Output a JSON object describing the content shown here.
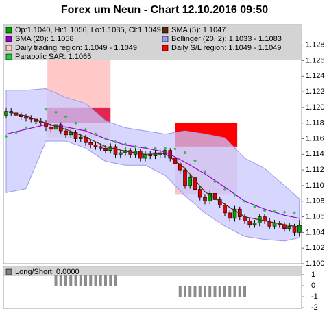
{
  "chart_data": {
    "type": "candlestick",
    "title": "Forex um Neun - Chart 12.10.2016 09:50",
    "open": [
      1.119,
      1.1195,
      1.1193,
      1.119,
      1.1188,
      1.1186,
      1.1185,
      1.1182,
      1.118,
      1.1175,
      1.1172,
      1.1178,
      1.117,
      1.1165,
      1.1168,
      1.116,
      1.1162,
      1.1155,
      1.1152,
      1.115,
      1.1148,
      1.1145,
      1.115,
      1.114,
      1.1142,
      1.1145,
      1.114,
      1.1144,
      1.1135,
      1.114,
      1.1138,
      1.1142,
      1.114,
      1.1145,
      1.1135,
      1.1128,
      1.112,
      1.11,
      1.111,
      1.1095,
      1.1085,
      1.108,
      1.109,
      1.1082,
      1.1075,
      1.1065,
      1.1058,
      1.107,
      1.106,
      1.1055,
      1.105,
      1.1052,
      1.106,
      1.1055,
      1.1048,
      1.1052,
      1.105,
      1.1045,
      1.1048,
      1.104
    ],
    "high": [
      1.12,
      1.1199,
      1.1197,
      1.1194,
      1.1192,
      1.119,
      1.1189,
      1.1186,
      1.1184,
      1.1179,
      1.1182,
      1.1181,
      1.1174,
      1.1172,
      1.1171,
      1.1166,
      1.1165,
      1.1159,
      1.1156,
      1.1154,
      1.1152,
      1.1154,
      1.1153,
      1.1146,
      1.1149,
      1.1148,
      1.1148,
      1.1147,
      1.1144,
      1.1144,
      1.1146,
      1.1146,
      1.1149,
      1.1148,
      1.1138,
      1.1131,
      1.1123,
      1.1114,
      1.1113,
      1.1099,
      1.1089,
      1.1094,
      1.1093,
      1.1086,
      1.1078,
      1.1068,
      1.1074,
      1.1073,
      1.1064,
      1.1059,
      1.1056,
      1.1064,
      1.1063,
      1.1058,
      1.1056,
      1.1055,
      1.1053,
      1.1052,
      1.1051,
      1.1056
    ],
    "low": [
      1.1186,
      1.1189,
      1.1186,
      1.1184,
      1.1182,
      1.1181,
      1.1178,
      1.1176,
      1.117,
      1.1168,
      1.1168,
      1.1166,
      1.1161,
      1.1161,
      1.1156,
      1.1156,
      1.1151,
      1.1148,
      1.1146,
      1.1144,
      1.1141,
      1.1141,
      1.1136,
      1.1136,
      1.1138,
      1.1136,
      1.1136,
      1.1131,
      1.1131,
      1.1134,
      1.1134,
      1.1136,
      1.1136,
      1.1131,
      1.1124,
      1.1115,
      1.1096,
      1.1096,
      1.109,
      1.1081,
      1.1076,
      1.1076,
      1.1078,
      1.1071,
      1.1061,
      1.1054,
      1.1054,
      1.1056,
      1.1051,
      1.1046,
      1.1046,
      1.1048,
      1.1051,
      1.1044,
      1.1044,
      1.1046,
      1.1041,
      1.1041,
      1.1036,
      1.1035
    ],
    "close": [
      1.1195,
      1.1193,
      1.119,
      1.1188,
      1.1186,
      1.1185,
      1.1182,
      1.118,
      1.1175,
      1.1172,
      1.1178,
      1.117,
      1.1165,
      1.1168,
      1.116,
      1.1162,
      1.1155,
      1.1152,
      1.115,
      1.1148,
      1.1145,
      1.115,
      1.114,
      1.1142,
      1.1145,
      1.114,
      1.1144,
      1.1135,
      1.114,
      1.1138,
      1.1142,
      1.114,
      1.1145,
      1.1135,
      1.1128,
      1.112,
      1.11,
      1.111,
      1.1095,
      1.1085,
      1.108,
      1.109,
      1.1082,
      1.1075,
      1.1065,
      1.1058,
      1.107,
      1.106,
      1.1055,
      1.105,
      1.1052,
      1.106,
      1.1055,
      1.1048,
      1.1052,
      1.105,
      1.1045,
      1.1048,
      1.104,
      1.1049
    ],
    "up_color": "#00a000",
    "down_color": "#e00000",
    "ylim": [
      1.1,
      1.1306
    ],
    "yticks": [
      {
        "value": 1.1,
        "label": "1.100"
      },
      {
        "value": 1.102,
        "label": "1.102"
      },
      {
        "value": 1.104,
        "label": "1.104"
      },
      {
        "value": 1.106,
        "label": "1.106"
      },
      {
        "value": 1.108,
        "label": "1.108"
      },
      {
        "value": 1.11,
        "label": "1.110"
      },
      {
        "value": 1.112,
        "label": "1.112"
      },
      {
        "value": 1.114,
        "label": "1.114"
      },
      {
        "value": 1.116,
        "label": "1.116"
      },
      {
        "value": 1.118,
        "label": "1.118"
      },
      {
        "value": 1.12,
        "label": "1.120"
      },
      {
        "value": 1.122,
        "label": "1.122"
      },
      {
        "value": 1.124,
        "label": "1.124"
      },
      {
        "value": 1.126,
        "label": "1.126"
      },
      {
        "value": 1.128,
        "label": "1.128"
      }
    ],
    "legend": [
      {
        "label": "Op:1.1040, Hi:1.1056, Lo:1.1035, Cl:1.1049",
        "color": "#00a000"
      },
      {
        "label": "SMA (5): 1.1047",
        "color": "#5a2a10"
      },
      {
        "label": "SMA (20): 1.1058",
        "color": "#9900cc"
      },
      {
        "label": "Bollinger (20, 2): 1.1033 - 1.1083",
        "color": "#9a9af0"
      },
      {
        "label": "Daily trading region: 1.1049 - 1.1049",
        "color": "#ffc8c8"
      },
      {
        "label": "Daily S/L region: 1.1049 - 1.1049",
        "color": "#ff0000"
      },
      {
        "label": "Parabolic SAR: 1.1065",
        "color": "#22cc44"
      }
    ],
    "regions": [
      {
        "color": "#ffc0c0",
        "opacity": 0.85,
        "x": [
          8.3,
          21
        ],
        "y": [
          1.1161,
          1.1306
        ]
      },
      {
        "color": "#dc0a3c",
        "opacity": 0.85,
        "x": [
          8.3,
          21
        ],
        "y": [
          1.118,
          1.12
        ]
      },
      {
        "color": "#ff0000",
        "opacity": 1,
        "x": [
          34,
          46.5
        ],
        "y": [
          1.115,
          1.118
        ]
      },
      {
        "color": "#f0a0b0",
        "opacity": 0.6,
        "x": [
          34,
          46.5
        ],
        "y": [
          1.1089,
          1.115
        ]
      }
    ],
    "overlays": {
      "x": [
        0,
        4,
        8,
        12,
        16,
        20,
        24,
        28,
        32,
        36,
        40,
        44,
        48,
        52,
        56,
        59
      ],
      "bollinger": {
        "color": "#c8c8ff",
        "stroke": "#9a9af0",
        "upper": [
          1.1222,
          1.1222,
          1.1224,
          1.1213,
          1.1205,
          1.1183,
          1.1174,
          1.117,
          1.1166,
          1.117,
          1.1166,
          1.1161,
          1.1135,
          1.1122,
          1.11,
          1.1083
        ],
        "lower": [
          1.1091,
          1.1096,
          1.1157,
          1.1157,
          1.1148,
          1.1131,
          1.1126,
          1.1126,
          1.1113,
          1.1087,
          1.1065,
          1.1048,
          1.1035,
          1.1031,
          1.1029,
          1.1033
        ]
      },
      "sma20": {
        "color": "#9900cc",
        "values": [
          1.1166,
          1.1172,
          1.1178,
          1.1175,
          1.117,
          1.116,
          1.1152,
          1.1148,
          1.1143,
          1.113,
          1.1115,
          1.1098,
          1.108,
          1.107,
          1.1062,
          1.1058
        ]
      },
      "sma5": {
        "color": "#5a2a10",
        "values": [
          1.1195,
          1.1189,
          1.118,
          1.1172,
          1.1162,
          1.115,
          1.1144,
          1.114,
          1.1141,
          1.1122,
          1.1092,
          1.1076,
          1.106,
          1.1055,
          1.105,
          1.1047
        ]
      }
    },
    "sar": {
      "color": "#22cc44",
      "x": [
        0,
        2,
        4,
        6,
        8,
        10,
        12,
        14,
        16,
        18,
        20,
        22,
        24,
        26,
        28,
        30,
        32,
        34,
        36,
        38,
        40,
        42,
        44,
        46,
        48,
        50,
        52,
        54,
        56,
        58
      ],
      "values": [
        1.1163,
        1.1168,
        1.1174,
        1.118,
        1.1198,
        1.1194,
        1.1188,
        1.118,
        1.1172,
        1.1166,
        1.116,
        1.1156,
        1.1153,
        1.115,
        1.1149,
        1.1148,
        1.1148,
        1.1147,
        1.1142,
        1.1132,
        1.1118,
        1.1105,
        1.1095,
        1.1088,
        1.108,
        1.1073,
        1.1068,
        1.1067,
        1.1066,
        1.1065
      ]
    },
    "lower": {
      "type": "bar",
      "legend": {
        "label": "Long/Short: 0.0000",
        "color": "#808080"
      },
      "color": "#8c8c8c",
      "values": [
        0,
        0,
        0,
        0,
        0,
        0,
        0,
        0,
        0,
        0,
        1,
        1,
        1,
        1,
        1,
        1,
        1,
        1,
        1,
        1,
        1,
        1,
        1,
        0,
        0,
        0,
        0,
        0,
        0,
        0,
        0,
        0,
        0,
        0,
        0,
        -1,
        -1,
        -1,
        -1,
        -1,
        -1,
        -1,
        -1,
        -1,
        -1,
        -1,
        -1,
        -1,
        -1,
        0,
        0,
        0,
        0,
        0,
        0,
        0,
        0,
        0,
        0,
        0
      ],
      "ylim": [
        -2.05,
        1.75
      ],
      "yticks": [
        1,
        0,
        -1,
        -2
      ]
    }
  }
}
